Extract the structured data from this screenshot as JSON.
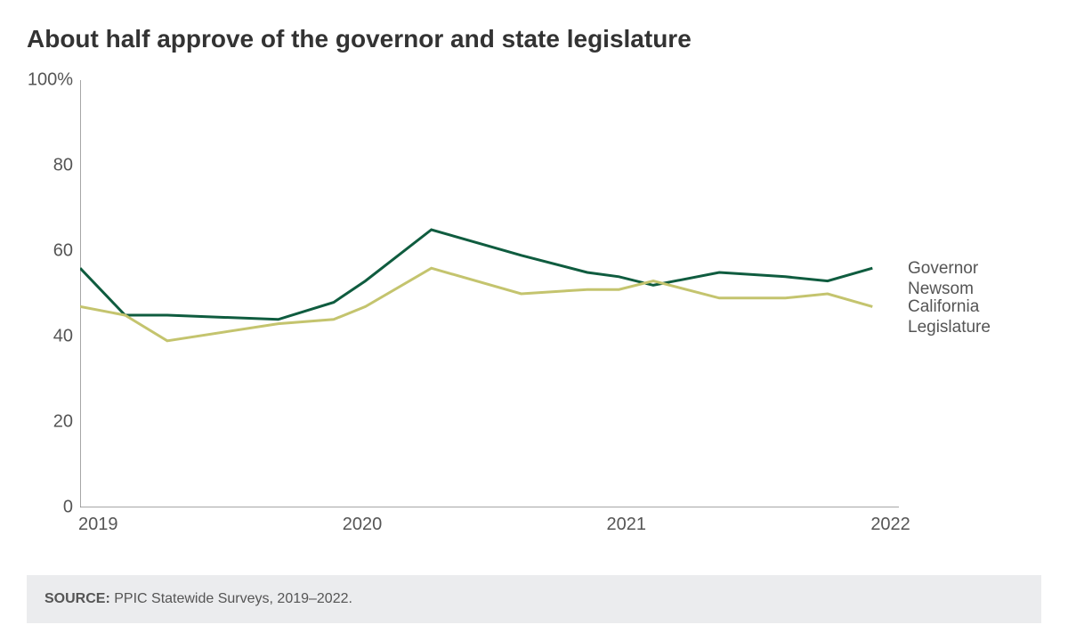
{
  "title": "About half approve of the governor and state legislature",
  "source_label": "SOURCE:",
  "source_text": " PPIC Statewide Surveys, 2019–2022.",
  "chart": {
    "type": "line",
    "background_color": "#ffffff",
    "axis_color": "#888888",
    "text_color": "#555555",
    "title_fontsize": 28,
    "label_fontsize": 20,
    "line_width": 3,
    "ylim": [
      0,
      100
    ],
    "yticks": [
      0,
      20,
      40,
      60,
      80,
      100
    ],
    "ytick_labels": [
      "0",
      "20",
      "40",
      "60",
      "80",
      "100%"
    ],
    "xlim": [
      2019,
      2022.1
    ],
    "xticks": [
      2019,
      2020,
      2021,
      2022
    ],
    "xtick_labels": [
      "2019",
      "2020",
      "2021",
      "2022"
    ],
    "x_values": [
      2019.0,
      2019.17,
      2019.33,
      2019.75,
      2019.96,
      2020.08,
      2020.33,
      2020.67,
      2020.92,
      2021.04,
      2021.17,
      2021.42,
      2021.67,
      2021.83,
      2022.0
    ],
    "series": [
      {
        "name": "Governor Newsom",
        "label_lines": [
          "Governor",
          "Newsom"
        ],
        "color": "#0f5c3f",
        "y": [
          56,
          45,
          45,
          44,
          48,
          53,
          65,
          59,
          55,
          54,
          52,
          55,
          54,
          53,
          56
        ]
      },
      {
        "name": "California Legislature",
        "label_lines": [
          "California",
          "Legislature"
        ],
        "color": "#c4c46e",
        "y": [
          47,
          45,
          39,
          43,
          44,
          47,
          56,
          50,
          51,
          51,
          53,
          49,
          49,
          50,
          47
        ]
      }
    ]
  }
}
